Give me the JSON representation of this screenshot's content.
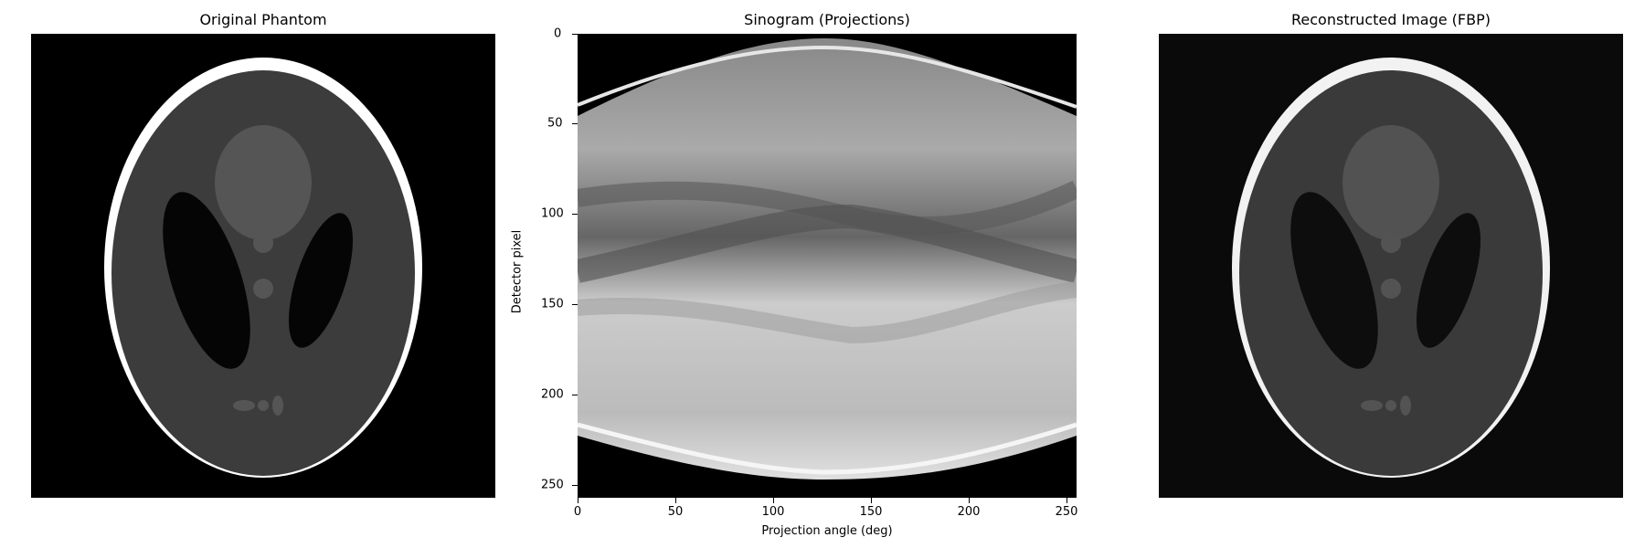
{
  "panels": {
    "phantom": {
      "title": "Original Phantom"
    },
    "sinogram": {
      "title": "Sinogram (Projections)",
      "xlabel": "Projection angle (deg)",
      "ylabel": "Detector pixel",
      "xticks": [
        "0",
        "50",
        "100",
        "150",
        "200",
        "250"
      ],
      "yticks": [
        "0",
        "50",
        "100",
        "150",
        "200",
        "250"
      ],
      "xlim": [
        0,
        255
      ],
      "ylim": [
        0,
        255
      ]
    },
    "reconstruction": {
      "title": "Reconstructed Image (FBP)"
    }
  },
  "colors": {
    "background": "#000000",
    "skull": "#ffffff",
    "brain": "#3c3c3c",
    "ventricle": "#0a0a0a",
    "lesion": "#555555"
  }
}
